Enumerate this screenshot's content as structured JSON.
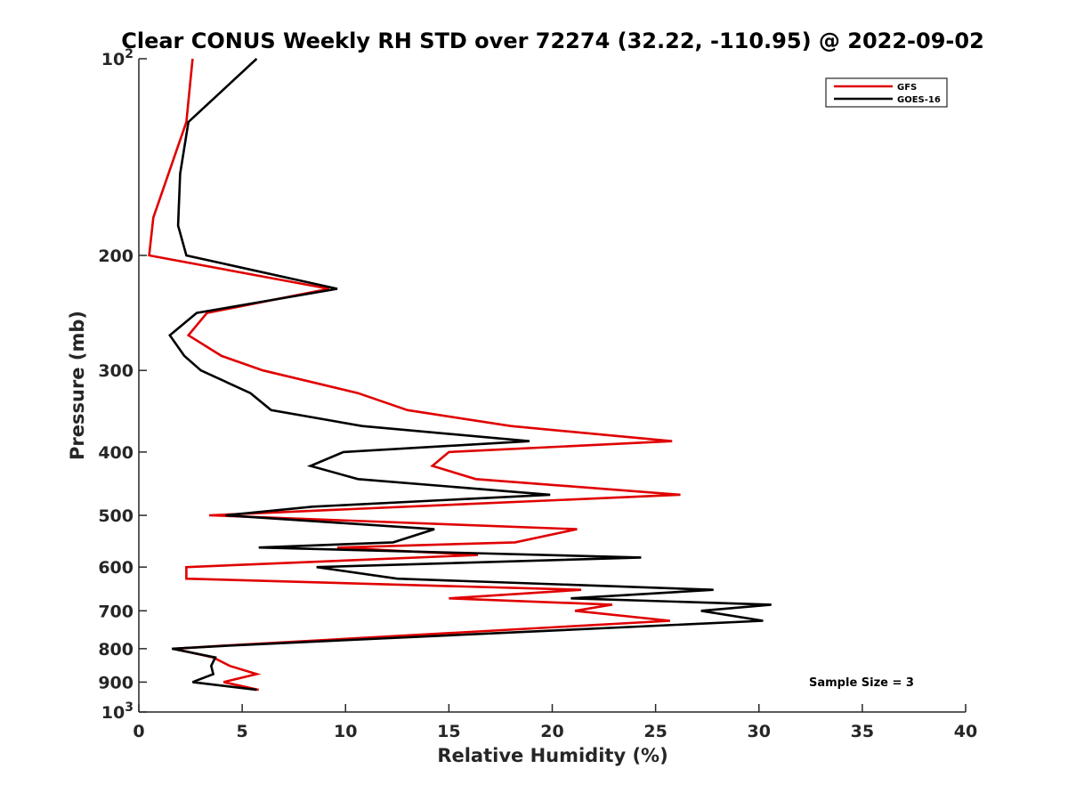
{
  "chart_data": {
    "type": "line",
    "title": "Clear CONUS Weekly RH STD over 72274 (32.22, -110.95) @ 2022-09-02",
    "xlabel": "Relative Humidity (%)",
    "ylabel": "Pressure (mb)",
    "xlim": [
      0,
      40
    ],
    "ylim": [
      100,
      1000
    ],
    "y_scale": "log",
    "y_reversed": true,
    "x_ticks": [
      "0",
      "5",
      "10",
      "15",
      "20",
      "25",
      "30",
      "35",
      "40"
    ],
    "y_ticks": [
      {
        "value": 100,
        "label": "10",
        "sup": "2"
      },
      {
        "value": 200,
        "label": "200",
        "sup": ""
      },
      {
        "value": 300,
        "label": "300",
        "sup": ""
      },
      {
        "value": 400,
        "label": "400",
        "sup": ""
      },
      {
        "value": 500,
        "label": "500",
        "sup": ""
      },
      {
        "value": 600,
        "label": "600",
        "sup": ""
      },
      {
        "value": 700,
        "label": "700",
        "sup": ""
      },
      {
        "value": 800,
        "label": "800",
        "sup": ""
      },
      {
        "value": 900,
        "label": "900",
        "sup": ""
      },
      {
        "value": 1000,
        "label": "10",
        "sup": "3"
      }
    ],
    "grid": false,
    "legend_position": "top-right",
    "annotation": "Sample Size = 3",
    "series": [
      {
        "name": "GFS",
        "color": "#e00000",
        "points": [
          [
            2.6,
            100
          ],
          [
            2.3,
            125
          ],
          [
            0.7,
            175
          ],
          [
            0.5,
            200
          ],
          [
            9.2,
            225
          ],
          [
            3.3,
            245
          ],
          [
            2.4,
            265
          ],
          [
            4.0,
            285
          ],
          [
            6.0,
            300
          ],
          [
            10.6,
            325
          ],
          [
            13.0,
            345
          ],
          [
            18.0,
            365
          ],
          [
            25.8,
            385
          ],
          [
            15.0,
            400
          ],
          [
            14.2,
            420
          ],
          [
            16.3,
            440
          ],
          [
            26.2,
            465
          ],
          [
            3.4,
            500
          ],
          [
            21.2,
            525
          ],
          [
            18.2,
            550
          ],
          [
            9.6,
            560
          ],
          [
            16.4,
            575
          ],
          [
            2.3,
            600
          ],
          [
            2.3,
            625
          ],
          [
            21.4,
            650
          ],
          [
            15.0,
            670
          ],
          [
            22.9,
            685
          ],
          [
            21.1,
            700
          ],
          [
            25.7,
            725
          ],
          [
            4.5,
            790
          ],
          [
            1.7,
            800
          ],
          [
            3.6,
            825
          ],
          [
            4.4,
            850
          ],
          [
            5.7,
            875
          ],
          [
            4.1,
            900
          ],
          [
            5.8,
            925
          ]
        ]
      },
      {
        "name": "GOES-16",
        "color": "#000000",
        "points": [
          [
            5.7,
            100
          ],
          [
            2.4,
            125
          ],
          [
            2.0,
            150
          ],
          [
            1.9,
            180
          ],
          [
            2.3,
            200
          ],
          [
            9.6,
            225
          ],
          [
            2.8,
            245
          ],
          [
            1.5,
            265
          ],
          [
            2.2,
            285
          ],
          [
            3.0,
            300
          ],
          [
            5.4,
            325
          ],
          [
            6.4,
            345
          ],
          [
            10.8,
            365
          ],
          [
            18.9,
            385
          ],
          [
            9.9,
            400
          ],
          [
            8.3,
            420
          ],
          [
            10.6,
            440
          ],
          [
            19.9,
            465
          ],
          [
            8.4,
            485
          ],
          [
            4.2,
            500
          ],
          [
            14.3,
            525
          ],
          [
            12.3,
            550
          ],
          [
            5.8,
            560
          ],
          [
            24.3,
            580
          ],
          [
            8.6,
            600
          ],
          [
            12.5,
            625
          ],
          [
            27.8,
            650
          ],
          [
            20.9,
            670
          ],
          [
            30.6,
            685
          ],
          [
            27.2,
            700
          ],
          [
            30.2,
            725
          ],
          [
            4.8,
            790
          ],
          [
            1.6,
            800
          ],
          [
            3.7,
            825
          ],
          [
            3.5,
            850
          ],
          [
            3.6,
            875
          ],
          [
            2.6,
            900
          ],
          [
            5.7,
            925
          ]
        ]
      }
    ]
  }
}
